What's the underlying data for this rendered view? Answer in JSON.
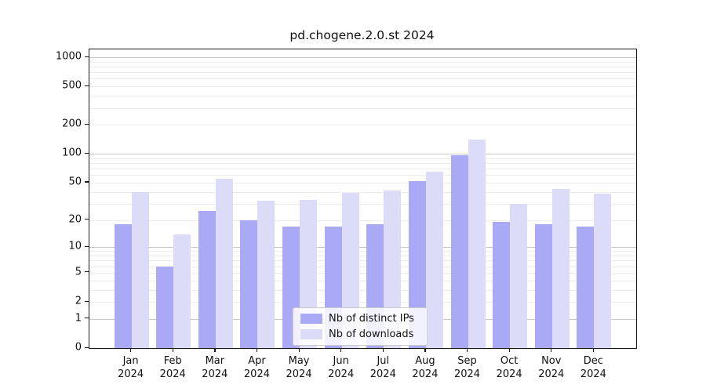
{
  "title": "pd.chogene.2.0.st 2024",
  "chart_data": {
    "type": "bar",
    "title": "pd.chogene.2.0.st 2024",
    "categories": [
      "Jan",
      "Feb",
      "Mar",
      "Apr",
      "May",
      "Jun",
      "Jul",
      "Aug",
      "Sep",
      "Oct",
      "Nov",
      "Dec"
    ],
    "category_year": "2024",
    "series": [
      {
        "name": "Nb of distinct IPs",
        "color": "#a9a9f5",
        "values": [
          18,
          6,
          25,
          20,
          17,
          17,
          18,
          52,
          97,
          19,
          18,
          17
        ]
      },
      {
        "name": "Nb of downloads",
        "color": "#dcdcf8",
        "values": [
          40,
          14,
          55,
          32,
          33,
          39,
          41,
          65,
          140,
          30,
          43,
          38
        ]
      }
    ],
    "xlabel": "",
    "ylabel": "",
    "y_scale": "log10(value+1)",
    "y_ticks": [
      0,
      1,
      2,
      5,
      10,
      20,
      50,
      100,
      200,
      500,
      1000
    ],
    "y_minor_gridlines": [
      2,
      3,
      4,
      5,
      6,
      7,
      8,
      9,
      20,
      30,
      40,
      50,
      60,
      70,
      80,
      90,
      200,
      300,
      400,
      500,
      600,
      700,
      800,
      900
    ],
    "y_major_gridlines": [
      1,
      10,
      100,
      1000
    ],
    "ylim": [
      0,
      1206
    ],
    "grid": true,
    "legend_position": "lower center",
    "colors": {
      "major_grid": "#c8c8c8",
      "minor_grid": "#ededed",
      "spine": "#1a1a1a",
      "text": "#111111",
      "background": "#ffffff"
    }
  }
}
